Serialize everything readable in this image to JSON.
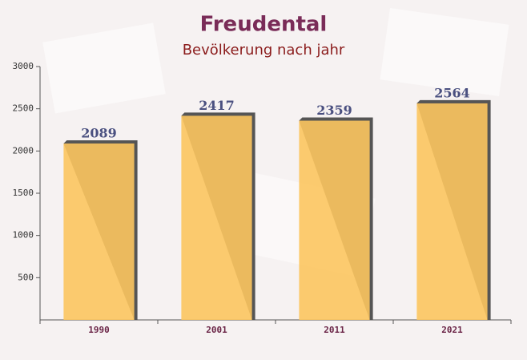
{
  "chart_data": {
    "type": "bar",
    "title": "Freudental",
    "subtitle": "Bevölkerung nach jahr",
    "categories": [
      "1990",
      "2001",
      "2011",
      "2021"
    ],
    "values": [
      2089,
      2417,
      2359,
      2564
    ],
    "color": "#fcc55f",
    "ylim": [
      0,
      3000
    ],
    "yticks": [
      500,
      1000,
      1500,
      2000,
      2500,
      3000
    ],
    "grid": false
  }
}
